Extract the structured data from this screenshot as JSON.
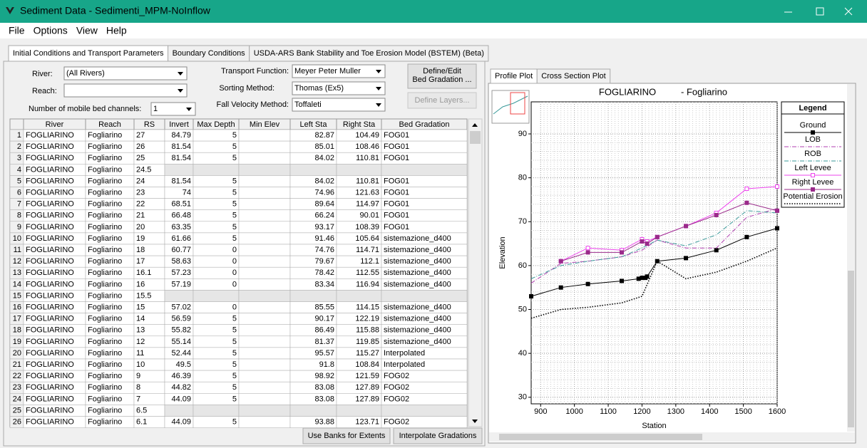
{
  "window": {
    "title": "Sediment Data - Sedimenti_MPM-NoInflow"
  },
  "menu": [
    "File",
    "Options",
    "View",
    "Help"
  ],
  "tabs": [
    "Initial Conditions and Transport Parameters",
    "Boundary Conditions",
    "USDA-ARS Bank Stability and Toe Erosion Model (BSTEM) (Beta)"
  ],
  "form": {
    "river_label": "River:",
    "river_value": "(All Rivers)",
    "reach_label": "Reach:",
    "reach_value": null,
    "channels_label": "Number of mobile bed channels:",
    "channels_value": "1",
    "transport_label": "Transport Function:",
    "transport_value": "Meyer Peter Muller",
    "sorting_label": "Sorting Method:",
    "sorting_value": "Thomas (Ex5)",
    "fall_label": "Fall Velocity Method:",
    "fall_value": "Toffaleti",
    "define_gradation": [
      "Define/Edit",
      "Bed Gradation ..."
    ],
    "define_layers": "Define Layers..."
  },
  "table": {
    "columns": [
      null,
      "River",
      "Reach",
      "RS",
      "Invert",
      "Max Depth",
      "Min Elev",
      "Left Sta",
      "Right Sta",
      "Bed Gradation"
    ],
    "rows": [
      [
        "1",
        "FOGLIARINO",
        "Fogliarino",
        "27",
        "84.79",
        "5",
        null,
        "82.87",
        "104.49",
        "FOG01"
      ],
      [
        "2",
        "FOGLIARINO",
        "Fogliarino",
        "26",
        "81.54",
        "5",
        null,
        "85.01",
        "108.46",
        "FOG01"
      ],
      [
        "3",
        "FOGLIARINO",
        "Fogliarino",
        "25",
        "81.54",
        "5",
        null,
        "84.02",
        "110.81",
        "FOG01"
      ],
      [
        "4",
        "FOGLIARINO",
        "Fogliarino",
        "24.5",
        null,
        null,
        null,
        null,
        null,
        null
      ],
      [
        "5",
        "FOGLIARINO",
        "Fogliarino",
        "24",
        "81.54",
        "5",
        null,
        "84.02",
        "110.81",
        "FOG01"
      ],
      [
        "6",
        "FOGLIARINO",
        "Fogliarino",
        "23",
        "74",
        "5",
        null,
        "74.96",
        "121.63",
        "FOG01"
      ],
      [
        "7",
        "FOGLIARINO",
        "Fogliarino",
        "22",
        "68.51",
        "5",
        null,
        "89.64",
        "114.97",
        "FOG01"
      ],
      [
        "8",
        "FOGLIARINO",
        "Fogliarino",
        "21",
        "66.48",
        "5",
        null,
        "66.24",
        "90.01",
        "FOG01"
      ],
      [
        "9",
        "FOGLIARINO",
        "Fogliarino",
        "20",
        "63.35",
        "5",
        null,
        "93.17",
        "108.39",
        "FOG01"
      ],
      [
        "10",
        "FOGLIARINO",
        "Fogliarino",
        "19",
        "61.66",
        "5",
        null,
        "91.46",
        "105.64",
        "sistemazione_d400"
      ],
      [
        "11",
        "FOGLIARINO",
        "Fogliarino",
        "18",
        "60.77",
        "0",
        null,
        "74.76",
        "114.71",
        "sistemazione_d400"
      ],
      [
        "12",
        "FOGLIARINO",
        "Fogliarino",
        "17",
        "58.63",
        "0",
        null,
        "79.67",
        "112.1",
        "sistemazione_d400"
      ],
      [
        "13",
        "FOGLIARINO",
        "Fogliarino",
        "16.1",
        "57.23",
        "0",
        null,
        "78.42",
        "112.55",
        "sistemazione_d400"
      ],
      [
        "14",
        "FOGLIARINO",
        "Fogliarino",
        "16",
        "57.19",
        "0",
        null,
        "83.34",
        "116.94",
        "sistemazione_d400"
      ],
      [
        "15",
        "FOGLIARINO",
        "Fogliarino",
        "15.5",
        null,
        null,
        null,
        null,
        null,
        null
      ],
      [
        "16",
        "FOGLIARINO",
        "Fogliarino",
        "15",
        "57.02",
        "0",
        null,
        "85.55",
        "114.15",
        "sistemazione_d400"
      ],
      [
        "17",
        "FOGLIARINO",
        "Fogliarino",
        "14",
        "56.59",
        "5",
        null,
        "90.17",
        "122.19",
        "sistemazione_d400"
      ],
      [
        "18",
        "FOGLIARINO",
        "Fogliarino",
        "13",
        "55.82",
        "5",
        null,
        "86.49",
        "115.88",
        "sistemazione_d400"
      ],
      [
        "19",
        "FOGLIARINO",
        "Fogliarino",
        "12",
        "55.14",
        "5",
        null,
        "81.37",
        "119.85",
        "sistemazione_d400"
      ],
      [
        "20",
        "FOGLIARINO",
        "Fogliarino",
        "11",
        "52.44",
        "5",
        null,
        "95.57",
        "115.27",
        "Interpolated"
      ],
      [
        "21",
        "FOGLIARINO",
        "Fogliarino",
        "10",
        "49.5",
        "5",
        null,
        "91.8",
        "108.84",
        "Interpolated"
      ],
      [
        "22",
        "FOGLIARINO",
        "Fogliarino",
        "9",
        "46.39",
        "5",
        null,
        "98.92",
        "121.59",
        "FOG02"
      ],
      [
        "23",
        "FOGLIARINO",
        "Fogliarino",
        "8",
        "44.82",
        "5",
        null,
        "83.08",
        "127.89",
        "FOG02"
      ],
      [
        "24",
        "FOGLIARINO",
        "Fogliarino",
        "7",
        "44.09",
        "5",
        null,
        "83.08",
        "127.89",
        "FOG02"
      ],
      [
        "25",
        "FOGLIARINO",
        "Fogliarino",
        "6.5",
        null,
        null,
        null,
        null,
        null,
        null
      ],
      [
        "26",
        "FOGLIARINO",
        "Fogliarino",
        "6.1",
        "44.09",
        "5",
        null,
        "93.88",
        "123.71",
        "FOG02"
      ]
    ]
  },
  "buttons": [
    "Use Banks for Extents",
    "Interpolate Gradations"
  ],
  "plot_tabs": [
    "Profile Plot",
    "Cross Section Plot"
  ],
  "chart_data": {
    "type": "line",
    "title": "FOGLIARINO",
    "subtitle": "- Fogliarino",
    "xlabel": "Station",
    "ylabel": "Elevation",
    "legend_title": "Legend",
    "xlim": [
      872,
      1600
    ],
    "ylim": [
      28.5,
      97.3
    ],
    "xticks": [
      900,
      1000,
      1100,
      1200,
      1300,
      1400,
      1500,
      1600
    ],
    "yticks": [
      30,
      40,
      50,
      60,
      70,
      80,
      90
    ],
    "grid": true,
    "series": [
      {
        "name": "Ground",
        "color": "#000000",
        "dash": "solid",
        "marker": "square",
        "x": [
          872,
          960,
          1040,
          1140,
          1190,
          1200,
          1210,
          1215,
          1245,
          1330,
          1420,
          1510,
          1600
        ],
        "values": [
          53,
          55,
          55.8,
          56.5,
          57,
          57.2,
          57.2,
          57.5,
          61,
          61.7,
          63.5,
          66.5,
          68.5
        ]
      },
      {
        "name": "LOB",
        "color": "#b03fb0",
        "dash": "dashdot",
        "marker": null,
        "x": [
          872,
          960,
          1040,
          1140,
          1200,
          1245,
          1330,
          1420,
          1510,
          1600
        ],
        "values": [
          56,
          60.5,
          61,
          62,
          63.5,
          65.8,
          64,
          64,
          71,
          73
        ]
      },
      {
        "name": "ROB",
        "color": "#3a9a9a",
        "dash": "dashdot",
        "marker": null,
        "x": [
          872,
          960,
          1040,
          1140,
          1200,
          1245,
          1330,
          1420,
          1510,
          1600
        ],
        "values": [
          57,
          60,
          61,
          62,
          64,
          65.8,
          64.5,
          67,
          72.5,
          72
        ]
      },
      {
        "name": "Left Levee",
        "color": "#ee44ee",
        "dash": "solid",
        "marker": "open-square",
        "x": [
          960,
          1040,
          1140,
          1200,
          1215,
          1245,
          1330,
          1420,
          1510,
          1600
        ],
        "values": [
          61,
          64,
          63.5,
          66,
          65.5,
          66.5,
          69,
          72,
          77.5,
          78
        ]
      },
      {
        "name": "Right Levee",
        "color": "#9a2a8a",
        "dash": "solid",
        "marker": "square",
        "x": [
          960,
          1040,
          1140,
          1200,
          1215,
          1245,
          1330,
          1420,
          1510,
          1600
        ],
        "values": [
          61,
          63,
          63,
          65.5,
          65,
          66.5,
          69,
          71.5,
          74.3,
          72.5
        ]
      },
      {
        "name": "Potential Erosion",
        "color": "#000000",
        "dash": "dotted",
        "marker": null,
        "x": [
          872,
          960,
          1040,
          1140,
          1200,
          1245,
          1330,
          1420,
          1510,
          1600
        ],
        "values": [
          48,
          50,
          50.5,
          51.5,
          53,
          61,
          57,
          58.5,
          61,
          64
        ]
      }
    ]
  }
}
